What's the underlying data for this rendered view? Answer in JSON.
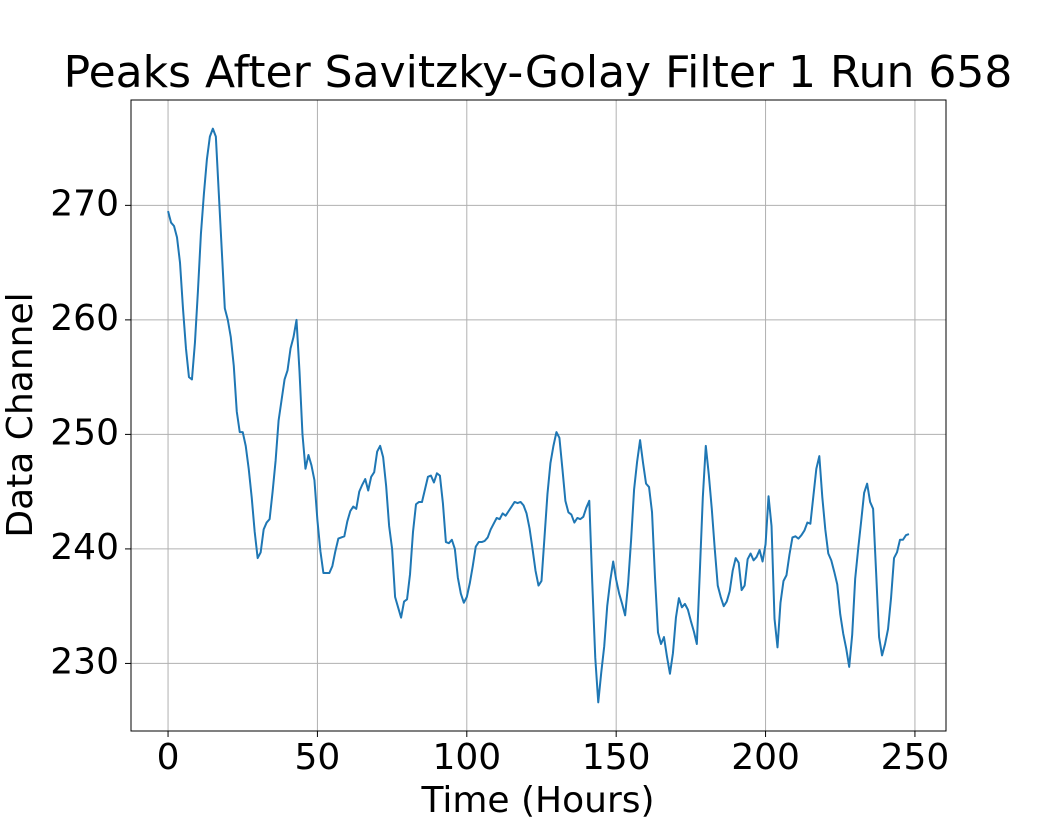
{
  "chart_data": {
    "type": "line",
    "title": "Peaks After Savitzky-Golay Filter 1 Run 658",
    "xlabel": "Time (Hours)",
    "ylabel": "Data Channel",
    "x": [
      0,
      1,
      2,
      3,
      4,
      5,
      6,
      7,
      8,
      9,
      10,
      11,
      12,
      13,
      14,
      15,
      16,
      17,
      18,
      19,
      20,
      21,
      22,
      23,
      24,
      25,
      26,
      27,
      28,
      29,
      30,
      31,
      32,
      33,
      34,
      35,
      36,
      37,
      38,
      39,
      40,
      41,
      42,
      43,
      44,
      45,
      46,
      47,
      48,
      49,
      50,
      51,
      52,
      53,
      54,
      55,
      56,
      57,
      58,
      59,
      60,
      61,
      62,
      63,
      64,
      65,
      66,
      67,
      68,
      69,
      70,
      71,
      72,
      73,
      74,
      75,
      76,
      77,
      78,
      79,
      80,
      81,
      82,
      83,
      84,
      85,
      86,
      87,
      88,
      89,
      90,
      91,
      92,
      93,
      94,
      95,
      96,
      97,
      98,
      99,
      100,
      101,
      102,
      103,
      104,
      105,
      106,
      107,
      108,
      109,
      110,
      111,
      112,
      113,
      114,
      115,
      116,
      117,
      118,
      119,
      120,
      121,
      122,
      123,
      124,
      125,
      126,
      127,
      128,
      129,
      130,
      131,
      132,
      133,
      134,
      135,
      136,
      137,
      138,
      139,
      140,
      141,
      142,
      143,
      144,
      145,
      146,
      147,
      148,
      149,
      150,
      151,
      152,
      153,
      154,
      155,
      156,
      157,
      158,
      159,
      160,
      161,
      162,
      163,
      164,
      165,
      166,
      167,
      168,
      169,
      170,
      171,
      172,
      173,
      174,
      175,
      176,
      177,
      178,
      179,
      180,
      181,
      182,
      183,
      184,
      185,
      186,
      187,
      188,
      189,
      190,
      191,
      192,
      193,
      194,
      195,
      196,
      197,
      198,
      199,
      200,
      201,
      202,
      203,
      204,
      205,
      206,
      207,
      208,
      209,
      210,
      211,
      212,
      213,
      214,
      215,
      216,
      217,
      218,
      219,
      220,
      221,
      222,
      223,
      224,
      225,
      226,
      227,
      228,
      229,
      230,
      231,
      232,
      233,
      234,
      235,
      236,
      237,
      238,
      239,
      240,
      241,
      242,
      243,
      244,
      245,
      246,
      247,
      248
    ],
    "series": [
      {
        "color": "#1f77b4",
        "values": [
          269.5,
          268.5,
          268.2,
          267.2,
          265,
          261,
          257.5,
          255,
          254.8,
          258,
          262.5,
          267.5,
          271,
          274,
          276,
          276.7,
          276,
          271,
          266,
          261,
          260,
          258.5,
          256,
          252,
          250.2,
          250.2,
          249,
          247,
          244.5,
          241.5,
          239.2,
          239.7,
          241.7,
          242.3,
          242.6,
          245,
          247.7,
          251.2,
          253,
          254.8,
          255.6,
          257.5,
          258.5,
          260,
          255.5,
          250,
          247,
          248.2,
          247.3,
          246,
          242.5,
          239.8,
          237.9,
          237.9,
          237.9,
          238.5,
          239.8,
          240.9,
          241,
          241.1,
          242.4,
          243.3,
          243.7,
          243.5,
          245,
          245.6,
          246.1,
          245.1,
          246.3,
          246.7,
          248.5,
          249,
          248,
          245.5,
          242,
          240,
          235.8,
          234.9,
          234,
          235.4,
          235.6,
          237.8,
          241.5,
          243.9,
          244.1,
          244.1,
          245.2,
          246.3,
          246.4,
          245.8,
          246.6,
          246.4,
          244,
          240.6,
          240.5,
          240.8,
          240,
          237.5,
          236.1,
          235.3,
          235.8,
          237,
          238.5,
          240.2,
          240.6,
          240.6,
          240.7,
          241,
          241.7,
          242.2,
          242.7,
          242.6,
          243.1,
          242.9,
          243.3,
          243.7,
          244.1,
          244,
          244.1,
          243.8,
          243.1,
          241.8,
          240,
          238.1,
          236.8,
          237.2,
          241,
          244.8,
          247.5,
          249,
          250.2,
          249.7,
          247,
          244.2,
          243.2,
          243,
          242.3,
          242.7,
          242.6,
          242.8,
          243.6,
          244.2,
          237,
          230.5,
          226.6,
          229.2,
          231.5,
          235,
          237.2,
          238.9,
          237.3,
          236.1,
          235.2,
          234.2,
          237,
          240.8,
          245.2,
          247.6,
          249.5,
          247.5,
          245.7,
          245.4,
          243.2,
          237.5,
          232.7,
          231.7,
          232.3,
          230.6,
          229.1,
          230.9,
          234,
          235.7,
          234.9,
          235.2,
          234.7,
          233.7,
          232.8,
          231.7,
          238,
          244.5,
          249,
          246.5,
          243.5,
          240,
          236.8,
          235.8,
          235,
          235.4,
          236.3,
          238.1,
          239.2,
          238.8,
          236.4,
          236.8,
          239.1,
          239.6,
          239,
          239.3,
          239.9,
          238.9,
          240.4,
          244.6,
          242,
          233.9,
          231.4,
          235.3,
          237.2,
          237.7,
          239.5,
          241,
          241.1,
          240.9,
          241.2,
          241.6,
          242.3,
          242.2,
          244.6,
          247,
          248.1,
          244.5,
          241.7,
          239.6,
          239,
          238,
          236.9,
          234.3,
          232.6,
          231.3,
          229.7,
          232.5,
          237.4,
          240,
          242.4,
          244.9,
          245.7,
          244.1,
          243.5,
          238,
          232.3,
          230.7,
          231.7,
          233,
          235.7,
          239.2,
          239.7,
          240.8,
          240.8,
          241.2,
          241.3
        ]
      }
    ],
    "xlim": [
      -12.4,
      260.4
    ],
    "ylim": [
      224.1,
      279.2
    ],
    "xticks": [
      0,
      50,
      100,
      150,
      200,
      250
    ],
    "yticks": [
      230,
      240,
      250,
      260,
      270
    ],
    "grid": true
  }
}
